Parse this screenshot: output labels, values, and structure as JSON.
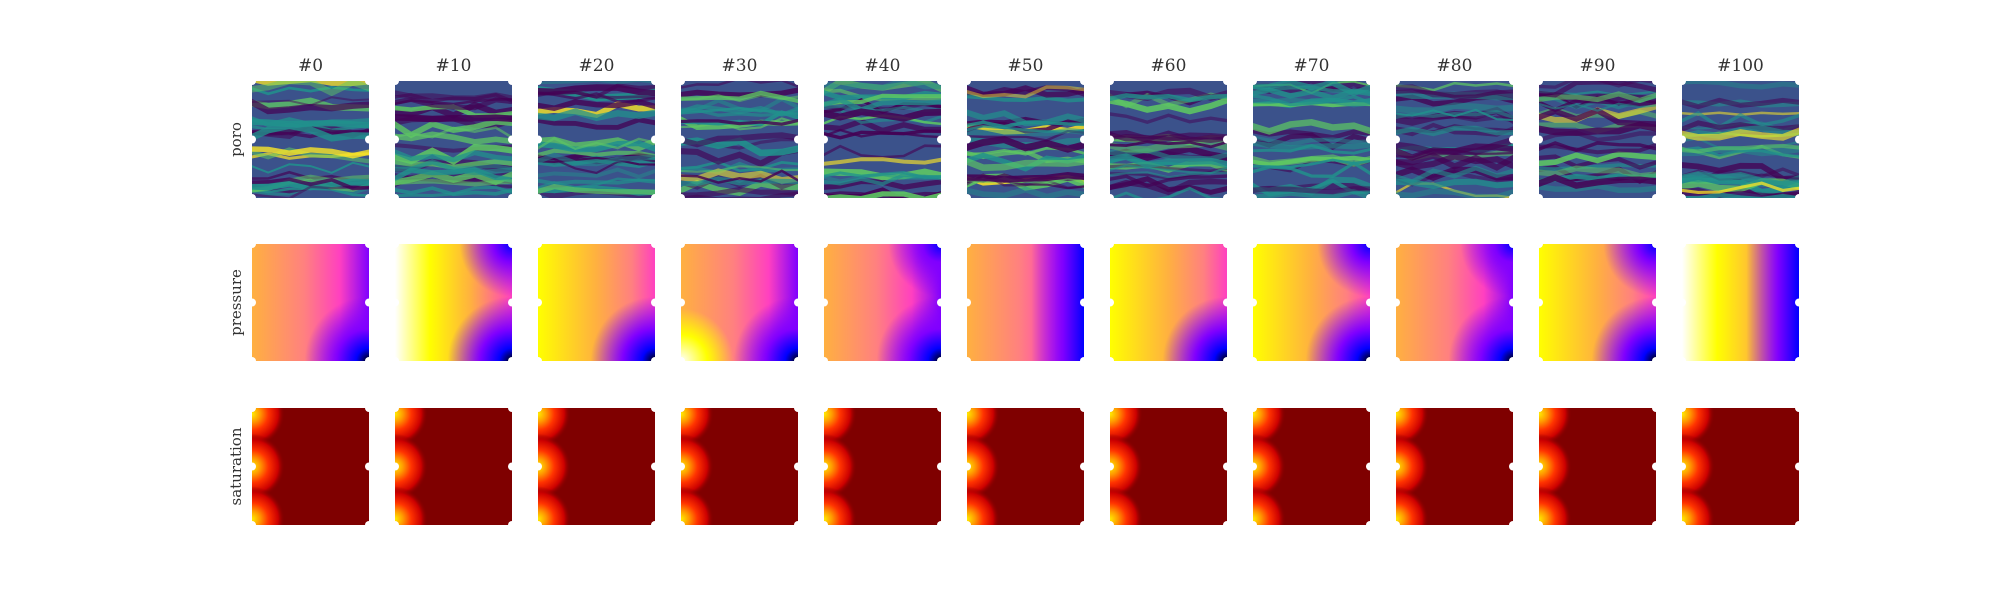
{
  "chart_data": {
    "type": "heatmap",
    "title": "",
    "columns": [
      "#0",
      "#10",
      "#20",
      "#30",
      "#40",
      "#50",
      "#60",
      "#70",
      "#80",
      "#90",
      "#100"
    ],
    "rows": [
      {
        "name": "poro",
        "colormap": "viridis"
      },
      {
        "name": "pressure",
        "colormap": "gnuplot2"
      },
      {
        "name": "saturation",
        "colormap": "jet"
      }
    ],
    "wells": {
      "injectors": "left edge (top, middle, bottom)",
      "producers": "right edge (top, middle, bottom)"
    },
    "pressure_low_corner": [
      "bottom-right",
      "top-right & bottom-right",
      "bottom-right",
      "bottom-right",
      "top-right & bottom-right",
      "right",
      "bottom-right",
      "top-right & bottom-right",
      "top-right & bottom-right",
      "top-right & bottom-right",
      "right"
    ],
    "grid": false,
    "legend": "none"
  },
  "colors": {
    "viridis": [
      "#440154",
      "#3b528b",
      "#21918c",
      "#5ec962",
      "#fde725"
    ],
    "pressure": [
      "#ffffff",
      "#ffff00",
      "#ffb040",
      "#ff8080",
      "#ff40c0",
      "#8000ff",
      "#0000ff",
      "#000000"
    ],
    "saturation": [
      "#7f0000",
      "#cc0000",
      "#ff3300",
      "#ff9900",
      "#ffee00"
    ]
  }
}
